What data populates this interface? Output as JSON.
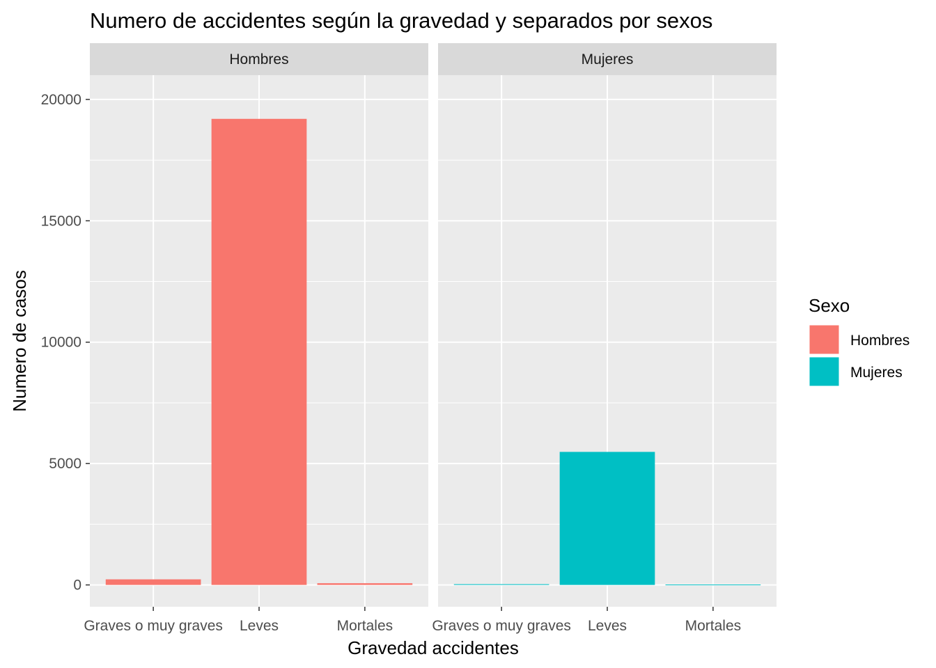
{
  "chart_data": {
    "type": "bar",
    "title": "Numero de accidentes según la gravedad y separados por sexos",
    "xlabel": "Gravedad accidentes",
    "ylabel": "Numero de casos",
    "categories": [
      "Graves o muy graves",
      "Leves",
      "Mortales"
    ],
    "ylim": [
      -900,
      21000
    ],
    "yticks": [
      0,
      5000,
      10000,
      15000,
      20000
    ],
    "ytick_labels": [
      "0",
      "5000",
      "10000",
      "15000",
      "20000"
    ],
    "grid": true,
    "panels": [
      {
        "name": "Hombres",
        "color": "#F8766D",
        "values": [
          230,
          19200,
          70
        ]
      },
      {
        "name": "Mujeres",
        "color": "#00BFC4",
        "values": [
          30,
          5480,
          15
        ]
      }
    ],
    "legend": {
      "title": "Sexo",
      "position": "right",
      "items": [
        {
          "label": "Hombres",
          "color": "#F8766D"
        },
        {
          "label": "Mujeres",
          "color": "#00BFC4"
        }
      ]
    },
    "panel_background": "#EBEBEB",
    "strip_background": "#D9D9D9"
  }
}
